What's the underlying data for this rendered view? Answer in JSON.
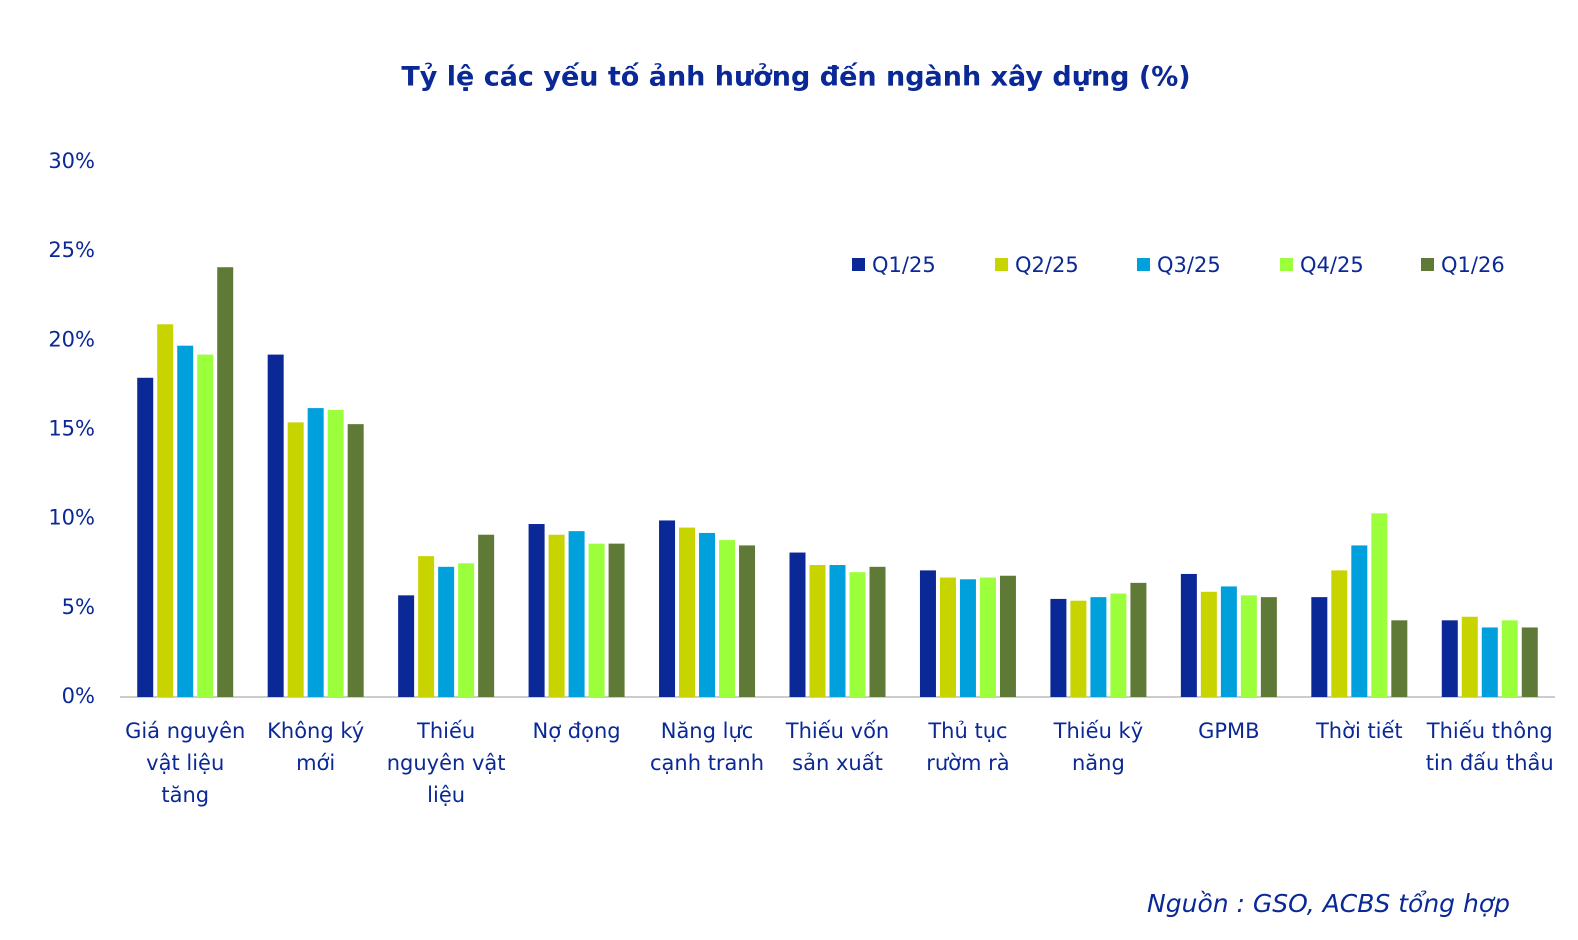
{
  "chart_data": {
    "type": "bar",
    "title": "Tỷ lệ các yếu tố ảnh hưởng đến ngành xây dựng (%)",
    "source": "Nguồn : GSO, ACBS tổng hợp",
    "categories": [
      "Giá nguyên vật liệu tăng",
      "Không ký mới",
      "Thiếu nguyên vật liệu",
      "Nợ đọng",
      "Năng lực cạnh tranh",
      "Thiếu vốn sản xuất",
      "Thủ tục rườm rà",
      "Thiếu kỹ năng",
      "GPMB",
      "Thời tiết",
      "Thiếu thông tin đấu thầu"
    ],
    "series": [
      {
        "name": "Q1/25",
        "color": "#0a2896",
        "values": [
          17.9,
          19.2,
          5.7,
          9.7,
          9.9,
          8.1,
          7.1,
          5.5,
          6.9,
          5.6,
          4.3
        ]
      },
      {
        "name": "Q2/25",
        "color": "#c8d400",
        "values": [
          20.9,
          15.4,
          7.9,
          9.1,
          9.5,
          7.4,
          6.7,
          5.4,
          5.9,
          7.1,
          4.5
        ]
      },
      {
        "name": "Q3/25",
        "color": "#00a0dc",
        "values": [
          19.7,
          16.2,
          7.3,
          9.3,
          9.2,
          7.4,
          6.6,
          5.6,
          6.2,
          8.5,
          3.9
        ]
      },
      {
        "name": "Q4/25",
        "color": "#9cff3c",
        "values": [
          19.2,
          16.1,
          7.5,
          8.6,
          8.8,
          7.0,
          6.7,
          5.8,
          5.7,
          10.3,
          4.3
        ]
      },
      {
        "name": "Q1/26",
        "color": "#5f7a37",
        "values": [
          24.1,
          15.3,
          9.1,
          8.6,
          8.5,
          7.3,
          6.8,
          6.4,
          5.6,
          4.3,
          3.9
        ]
      }
    ],
    "ylim": [
      0,
      30
    ],
    "yticks": [
      {
        "value": 0,
        "label": "0%"
      },
      {
        "value": 5,
        "label": "5%"
      },
      {
        "value": 10,
        "label": "10%"
      },
      {
        "value": 15,
        "label": "15%"
      },
      {
        "value": 20,
        "label": "20%"
      },
      {
        "value": 25,
        "label": "25%"
      },
      {
        "value": 30,
        "label": "30%"
      }
    ],
    "grid": false,
    "legend": "top-right"
  }
}
